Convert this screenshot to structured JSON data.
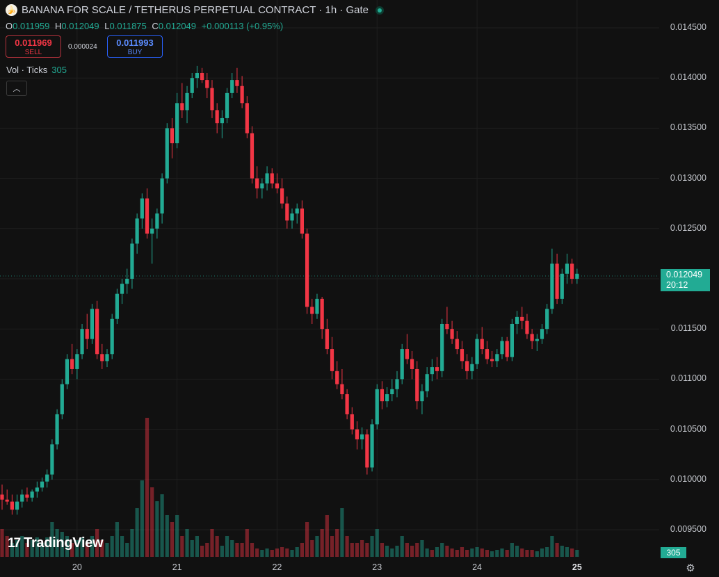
{
  "header": {
    "title": "BANANA FOR SCALE / TETHERUS PERPETUAL CONTRACT · 1h · Gate",
    "symbol_icon": "banana-icon"
  },
  "ohlc": {
    "o_label": "O",
    "o": "0.011959",
    "h_label": "H",
    "h": "0.012049",
    "l_label": "L",
    "l": "0.011875",
    "c_label": "C",
    "c": "0.012049",
    "change": "+0.000113 (+0.95%)"
  },
  "trade": {
    "sell_price": "0.011969",
    "sell_label": "SELL",
    "spread": "0.000024",
    "buy_price": "0.011993",
    "buy_label": "BUY"
  },
  "volume_indicator": {
    "label": "Vol · Ticks",
    "value": "305"
  },
  "colors": {
    "up": "#22ab94",
    "down": "#f23645",
    "background": "#111111"
  },
  "price_label": {
    "price": "0.012049",
    "countdown": "20:12"
  },
  "volume_label": "305",
  "branding": "TradingView",
  "chart_data": {
    "type": "candlestick",
    "y_ticks": [
      "0.014500",
      "0.014000",
      "0.013500",
      "0.013000",
      "0.012500",
      "0.012000",
      "0.011500",
      "0.011000",
      "0.010500",
      "0.010000",
      "0.009500"
    ],
    "x_ticks": [
      "20",
      "21",
      "22",
      "23",
      "24",
      "25"
    ],
    "ylim": [
      0.00935,
      0.01455
    ],
    "grid": true,
    "last_price": 0.012049,
    "candles": [
      [
        0.00985,
        0.00995,
        0.0097,
        0.0098
      ],
      [
        0.0098,
        0.0099,
        0.00975,
        0.00978
      ],
      [
        0.00978,
        0.00985,
        0.00965,
        0.0097
      ],
      [
        0.0097,
        0.00985,
        0.00965,
        0.00978
      ],
      [
        0.00978,
        0.0099,
        0.00972,
        0.00985
      ],
      [
        0.00985,
        0.00992,
        0.00978,
        0.00982
      ],
      [
        0.00982,
        0.0099,
        0.00978,
        0.00988
      ],
      [
        0.00988,
        0.00998,
        0.00982,
        0.00992
      ],
      [
        0.00992,
        0.01002,
        0.00988,
        0.00998
      ],
      [
        0.00998,
        0.0101,
        0.00992,
        0.01005
      ],
      [
        0.01005,
        0.0104,
        0.01,
        0.01035
      ],
      [
        0.01035,
        0.0107,
        0.0103,
        0.01065
      ],
      [
        0.01065,
        0.011,
        0.0106,
        0.01095
      ],
      [
        0.01095,
        0.01125,
        0.0109,
        0.0112
      ],
      [
        0.0112,
        0.01135,
        0.01105,
        0.0111
      ],
      [
        0.0111,
        0.0113,
        0.011,
        0.01125
      ],
      [
        0.01125,
        0.01155,
        0.0112,
        0.0115
      ],
      [
        0.0115,
        0.01165,
        0.0113,
        0.0114
      ],
      [
        0.0114,
        0.01175,
        0.01135,
        0.0117
      ],
      [
        0.0117,
        0.01178,
        0.0112,
        0.01125
      ],
      [
        0.01125,
        0.01135,
        0.0111,
        0.01118
      ],
      [
        0.01118,
        0.0113,
        0.01112,
        0.01125
      ],
      [
        0.01125,
        0.01165,
        0.0112,
        0.0116
      ],
      [
        0.0116,
        0.0119,
        0.01155,
        0.01185
      ],
      [
        0.01185,
        0.012,
        0.01175,
        0.01195
      ],
      [
        0.01195,
        0.0121,
        0.01185,
        0.012
      ],
      [
        0.012,
        0.0124,
        0.0119,
        0.01235
      ],
      [
        0.01235,
        0.01265,
        0.01225,
        0.0126
      ],
      [
        0.0126,
        0.01285,
        0.0125,
        0.0128
      ],
      [
        0.0128,
        0.0129,
        0.0124,
        0.01245
      ],
      [
        0.01245,
        0.0126,
        0.01215,
        0.0125
      ],
      [
        0.0125,
        0.0127,
        0.0124,
        0.01265
      ],
      [
        0.01265,
        0.01305,
        0.01255,
        0.013
      ],
      [
        0.013,
        0.01355,
        0.01295,
        0.0135
      ],
      [
        0.0135,
        0.0136,
        0.0132,
        0.01335
      ],
      [
        0.01335,
        0.01385,
        0.0133,
        0.01375
      ],
      [
        0.01375,
        0.01395,
        0.0136,
        0.01368
      ],
      [
        0.01368,
        0.01392,
        0.01355,
        0.01385
      ],
      [
        0.01385,
        0.01405,
        0.0138,
        0.014
      ],
      [
        0.014,
        0.01412,
        0.0139,
        0.01405
      ],
      [
        0.01405,
        0.0141,
        0.01395,
        0.01398
      ],
      [
        0.01398,
        0.01405,
        0.0138,
        0.0139
      ],
      [
        0.0139,
        0.01398,
        0.0136,
        0.01368
      ],
      [
        0.01368,
        0.01375,
        0.01345,
        0.01355
      ],
      [
        0.01355,
        0.01368,
        0.0134,
        0.0136
      ],
      [
        0.0136,
        0.0139,
        0.01355,
        0.01385
      ],
      [
        0.01385,
        0.01405,
        0.0138,
        0.01398
      ],
      [
        0.01398,
        0.0141,
        0.01385,
        0.01392
      ],
      [
        0.01392,
        0.01402,
        0.0137,
        0.01375
      ],
      [
        0.01375,
        0.01382,
        0.0134,
        0.01345
      ],
      [
        0.01345,
        0.01352,
        0.01295,
        0.013
      ],
      [
        0.013,
        0.01312,
        0.0128,
        0.0129
      ],
      [
        0.0129,
        0.013,
        0.0128,
        0.01295
      ],
      [
        0.01295,
        0.01312,
        0.01288,
        0.01305
      ],
      [
        0.01305,
        0.0131,
        0.0129,
        0.01295
      ],
      [
        0.01295,
        0.01305,
        0.01285,
        0.0129
      ],
      [
        0.0129,
        0.013,
        0.0127,
        0.01275
      ],
      [
        0.01275,
        0.01282,
        0.0125,
        0.01258
      ],
      [
        0.01258,
        0.0127,
        0.0125,
        0.01265
      ],
      [
        0.01265,
        0.01275,
        0.01255,
        0.0127
      ],
      [
        0.0127,
        0.01278,
        0.0124,
        0.01245
      ],
      [
        0.01245,
        0.0125,
        0.01165,
        0.01172
      ],
      [
        0.01172,
        0.0118,
        0.01155,
        0.01165
      ],
      [
        0.01165,
        0.01185,
        0.0116,
        0.0118
      ],
      [
        0.0118,
        0.01182,
        0.0114,
        0.0115
      ],
      [
        0.0115,
        0.0116,
        0.01125,
        0.0113
      ],
      [
        0.0113,
        0.01142,
        0.011,
        0.01108
      ],
      [
        0.01108,
        0.01118,
        0.0109,
        0.01095
      ],
      [
        0.01095,
        0.0111,
        0.0108,
        0.01085
      ],
      [
        0.01085,
        0.0109,
        0.0106,
        0.01065
      ],
      [
        0.01065,
        0.01072,
        0.01045,
        0.0105
      ],
      [
        0.0105,
        0.01058,
        0.0103,
        0.0104
      ],
      [
        0.0104,
        0.01052,
        0.0103,
        0.01045
      ],
      [
        0.01045,
        0.0105,
        0.01005,
        0.01012
      ],
      [
        0.01012,
        0.0106,
        0.01008,
        0.01055
      ],
      [
        0.01055,
        0.01095,
        0.0105,
        0.0109
      ],
      [
        0.0109,
        0.01098,
        0.0107,
        0.01078
      ],
      [
        0.01078,
        0.01092,
        0.01072,
        0.01085
      ],
      [
        0.01085,
        0.011,
        0.01078,
        0.0109
      ],
      [
        0.0109,
        0.01108,
        0.01082,
        0.011
      ],
      [
        0.011,
        0.01135,
        0.01095,
        0.0113
      ],
      [
        0.0113,
        0.01145,
        0.01115,
        0.0112
      ],
      [
        0.0112,
        0.01128,
        0.011,
        0.0111
      ],
      [
        0.0111,
        0.01118,
        0.0107,
        0.01078
      ],
      [
        0.01078,
        0.01095,
        0.01065,
        0.01088
      ],
      [
        0.01088,
        0.01112,
        0.01082,
        0.01105
      ],
      [
        0.01105,
        0.0112,
        0.01098,
        0.01112
      ],
      [
        0.01112,
        0.01122,
        0.011,
        0.01108
      ],
      [
        0.01108,
        0.0116,
        0.01102,
        0.01155
      ],
      [
        0.01155,
        0.01172,
        0.01145,
        0.0115
      ],
      [
        0.0115,
        0.01158,
        0.01135,
        0.0114
      ],
      [
        0.0114,
        0.01148,
        0.01125,
        0.0113
      ],
      [
        0.0113,
        0.01138,
        0.0111,
        0.01118
      ],
      [
        0.01118,
        0.01125,
        0.011,
        0.01108
      ],
      [
        0.01108,
        0.01122,
        0.011,
        0.01115
      ],
      [
        0.01115,
        0.01145,
        0.0111,
        0.0114
      ],
      [
        0.0114,
        0.01152,
        0.01125,
        0.0113
      ],
      [
        0.0113,
        0.01138,
        0.01115,
        0.0112
      ],
      [
        0.0112,
        0.01128,
        0.01112,
        0.01118
      ],
      [
        0.01118,
        0.0113,
        0.01112,
        0.01125
      ],
      [
        0.01125,
        0.01142,
        0.0112,
        0.01138
      ],
      [
        0.01138,
        0.01142,
        0.01118,
        0.01122
      ],
      [
        0.01122,
        0.0116,
        0.01118,
        0.01155
      ],
      [
        0.01155,
        0.01168,
        0.01145,
        0.01162
      ],
      [
        0.01162,
        0.01172,
        0.0115,
        0.01158
      ],
      [
        0.01158,
        0.01165,
        0.0114,
        0.01145
      ],
      [
        0.01145,
        0.0115,
        0.0113,
        0.01138
      ],
      [
        0.01138,
        0.01145,
        0.01128,
        0.0114
      ],
      [
        0.0114,
        0.01155,
        0.01135,
        0.0115
      ],
      [
        0.0115,
        0.01175,
        0.01145,
        0.0117
      ],
      [
        0.0117,
        0.0123,
        0.01165,
        0.01215
      ],
      [
        0.01215,
        0.01225,
        0.01175,
        0.0118
      ],
      [
        0.0118,
        0.0121,
        0.01175,
        0.01205
      ],
      [
        0.01205,
        0.01225,
        0.01195,
        0.01215
      ],
      [
        0.01215,
        0.0122,
        0.01195,
        0.012
      ],
      [
        0.012,
        0.0121,
        0.01195,
        0.01205
      ]
    ],
    "volumes": [
      [
        0.2,
        0
      ],
      [
        0.15,
        0
      ],
      [
        0.1,
        1
      ],
      [
        0.12,
        1
      ],
      [
        0.15,
        1
      ],
      [
        0.1,
        0
      ],
      [
        0.12,
        1
      ],
      [
        0.14,
        1
      ],
      [
        0.1,
        1
      ],
      [
        0.14,
        1
      ],
      [
        0.25,
        1
      ],
      [
        0.2,
        1
      ],
      [
        0.18,
        1
      ],
      [
        0.15,
        1
      ],
      [
        0.1,
        0
      ],
      [
        0.12,
        1
      ],
      [
        0.14,
        1
      ],
      [
        0.1,
        0
      ],
      [
        0.15,
        1
      ],
      [
        0.2,
        0
      ],
      [
        0.12,
        0
      ],
      [
        0.1,
        1
      ],
      [
        0.15,
        1
      ],
      [
        0.25,
        1
      ],
      [
        0.15,
        1
      ],
      [
        0.1,
        1
      ],
      [
        0.2,
        1
      ],
      [
        0.35,
        1
      ],
      [
        0.55,
        1
      ],
      [
        1.0,
        0
      ],
      [
        0.5,
        0
      ],
      [
        0.4,
        1
      ],
      [
        0.45,
        1
      ],
      [
        0.3,
        1
      ],
      [
        0.25,
        0
      ],
      [
        0.3,
        1
      ],
      [
        0.15,
        0
      ],
      [
        0.2,
        1
      ],
      [
        0.12,
        1
      ],
      [
        0.15,
        1
      ],
      [
        0.08,
        0
      ],
      [
        0.1,
        0
      ],
      [
        0.2,
        0
      ],
      [
        0.15,
        0
      ],
      [
        0.08,
        1
      ],
      [
        0.15,
        1
      ],
      [
        0.12,
        1
      ],
      [
        0.1,
        0
      ],
      [
        0.1,
        0
      ],
      [
        0.2,
        0
      ],
      [
        0.1,
        0
      ],
      [
        0.06,
        0
      ],
      [
        0.05,
        1
      ],
      [
        0.06,
        1
      ],
      [
        0.05,
        0
      ],
      [
        0.06,
        0
      ],
      [
        0.07,
        0
      ],
      [
        0.06,
        0
      ],
      [
        0.05,
        1
      ],
      [
        0.07,
        1
      ],
      [
        0.1,
        0
      ],
      [
        0.25,
        0
      ],
      [
        0.12,
        0
      ],
      [
        0.15,
        1
      ],
      [
        0.2,
        0
      ],
      [
        0.3,
        0
      ],
      [
        0.15,
        0
      ],
      [
        0.2,
        0
      ],
      [
        0.35,
        1
      ],
      [
        0.15,
        0
      ],
      [
        0.1,
        0
      ],
      [
        0.1,
        0
      ],
      [
        0.12,
        0
      ],
      [
        0.1,
        0
      ],
      [
        0.15,
        1
      ],
      [
        0.2,
        1
      ],
      [
        0.1,
        0
      ],
      [
        0.08,
        1
      ],
      [
        0.06,
        1
      ],
      [
        0.08,
        1
      ],
      [
        0.15,
        1
      ],
      [
        0.1,
        0
      ],
      [
        0.08,
        0
      ],
      [
        0.1,
        0
      ],
      [
        0.12,
        1
      ],
      [
        0.06,
        1
      ],
      [
        0.05,
        0
      ],
      [
        0.07,
        1
      ],
      [
        0.1,
        1
      ],
      [
        0.08,
        0
      ],
      [
        0.06,
        0
      ],
      [
        0.05,
        0
      ],
      [
        0.07,
        0
      ],
      [
        0.05,
        0
      ],
      [
        0.06,
        1
      ],
      [
        0.07,
        1
      ],
      [
        0.06,
        0
      ],
      [
        0.05,
        0
      ],
      [
        0.04,
        1
      ],
      [
        0.05,
        1
      ],
      [
        0.06,
        1
      ],
      [
        0.05,
        0
      ],
      [
        0.1,
        1
      ],
      [
        0.08,
        1
      ],
      [
        0.06,
        0
      ],
      [
        0.05,
        0
      ],
      [
        0.05,
        0
      ],
      [
        0.04,
        1
      ],
      [
        0.06,
        1
      ],
      [
        0.07,
        1
      ],
      [
        0.15,
        1
      ],
      [
        0.1,
        0
      ],
      [
        0.08,
        1
      ],
      [
        0.07,
        1
      ],
      [
        0.06,
        0
      ],
      [
        0.05,
        1
      ]
    ]
  }
}
